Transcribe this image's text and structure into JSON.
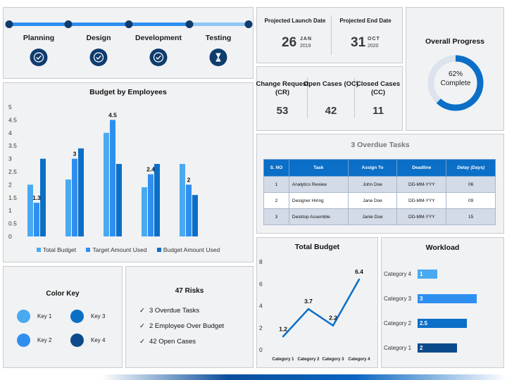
{
  "timeline": {
    "phases": [
      {
        "label": "Planning",
        "icon": "check-circle-icon"
      },
      {
        "label": "Design",
        "icon": "check-circle-icon"
      },
      {
        "label": "Development",
        "icon": "check-circle-icon"
      },
      {
        "label": "Testing",
        "icon": "hourglass-icon"
      }
    ]
  },
  "dates": {
    "launch": {
      "label": "Projected Launch Date",
      "day": "26",
      "month": "JAN",
      "year": "2019"
    },
    "end": {
      "label": "Projected End Date",
      "day": "31",
      "month": "OCT",
      "year": "2020"
    }
  },
  "progress": {
    "title": "Overall Progress",
    "value": "62%",
    "status": "Complete",
    "fraction": 0.62
  },
  "stats": [
    {
      "label": "Change Request (CR)",
      "value": "53"
    },
    {
      "label": "Open Cases (OC)",
      "value": "42"
    },
    {
      "label": "Closed Cases (CC)",
      "value": "11"
    }
  ],
  "overdue": {
    "title": "3 Overdue Tasks",
    "headers": [
      "S. NO",
      "Task",
      "Assign To",
      "Deadline",
      "Delay (Days)"
    ],
    "rows": [
      [
        "1",
        "Analytics Review",
        "John Doe",
        "DD-MM-YYY",
        "06"
      ],
      [
        "2",
        "Designer Hiring",
        "Jane Doe",
        "DD-MM-YYY",
        "09"
      ],
      [
        "3",
        "Desktop Assemble",
        "Janie Doe",
        "DD-MM-YYY",
        "15"
      ]
    ]
  },
  "color_key": {
    "title": "Color Key",
    "keys": [
      {
        "label": "Key 1",
        "color": "#4aaaf0"
      },
      {
        "label": "Key 3",
        "color": "#0b6fc7"
      },
      {
        "label": "Key 2",
        "color": "#2f8ff0"
      },
      {
        "label": "Key 4",
        "color": "#0d4a8c"
      }
    ]
  },
  "risks": {
    "title": "47 Risks",
    "items": [
      "3 Overdue Tasks",
      "2 Employee Over Budget",
      "42 Open Cases"
    ]
  },
  "chart_data": [
    {
      "type": "bar",
      "title": "Budget by Employees",
      "xlabel": "",
      "ylabel": "",
      "ylim": [
        0,
        5
      ],
      "yticks": [
        "0",
        "0.5",
        "1",
        "1.5",
        "2",
        "2.5",
        "3",
        "3.5",
        "4",
        "4.5",
        "5"
      ],
      "categories": [
        "",
        "",
        "",
        "",
        ""
      ],
      "series": [
        {
          "name": "Total Budget",
          "values": [
            2.0,
            2.2,
            4.0,
            1.9,
            2.8
          ],
          "color": "#4aaaf0"
        },
        {
          "name": "Target Amount Used",
          "values": [
            1.3,
            3.0,
            4.5,
            2.4,
            2.0
          ],
          "color": "#2f8ff0"
        },
        {
          "name": "Budget Amount Used",
          "values": [
            3.0,
            3.4,
            2.8,
            2.8,
            1.6
          ],
          "color": "#0b6fc7"
        }
      ],
      "data_labels": [
        "1.3",
        "3",
        "4.5",
        "2.4",
        "2"
      ],
      "legend": "bottom"
    },
    {
      "type": "line",
      "title": "Total Budget",
      "categories": [
        "Category 1",
        "Category 2",
        "Category 3",
        "Category 4"
      ],
      "values": [
        1.2,
        3.7,
        2.2,
        6.4
      ],
      "data_labels": [
        "1.2",
        "3.7",
        "2.2",
        "6.4"
      ],
      "ylim": [
        0,
        8
      ],
      "yticks": [
        "0",
        "2",
        "4",
        "6",
        "8"
      ],
      "color": "#0b6fc7"
    },
    {
      "type": "bar",
      "orientation": "horizontal",
      "title": "Workload",
      "categories": [
        "Category 4",
        "Category 3",
        "Category 2",
        "Category 1"
      ],
      "values": [
        1,
        3,
        2.5,
        2
      ],
      "data_labels": [
        "1",
        "3",
        "2.5",
        "2"
      ],
      "colors": [
        "#4aaaf0",
        "#2f8ff0",
        "#0b6fc7",
        "#0d4a8c"
      ],
      "xlim": [
        0,
        4
      ]
    }
  ]
}
